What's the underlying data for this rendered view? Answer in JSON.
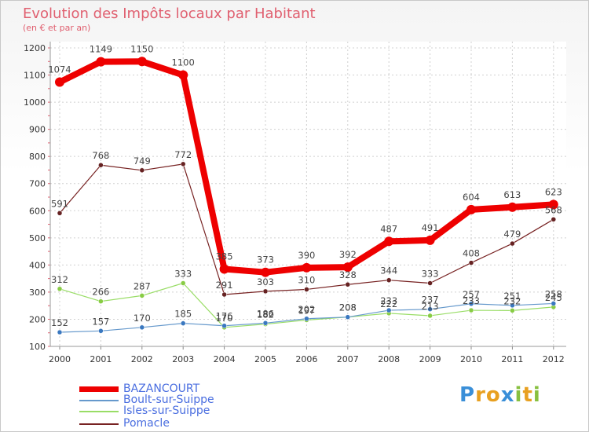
{
  "title": "Evolution des Impôts locaux par Habitant",
  "subtitle": "(en € et par an)",
  "logo": [
    "P",
    "r",
    "o",
    "x",
    "i",
    "t",
    "i"
  ],
  "chart_data": {
    "type": "line",
    "x": [
      "2000",
      "2001",
      "2002",
      "2003",
      "2004",
      "2005",
      "2006",
      "2007",
      "2008",
      "2009",
      "2010",
      "2011",
      "2012"
    ],
    "ylim": [
      100,
      1200
    ],
    "yticks": [
      100,
      200,
      300,
      400,
      500,
      600,
      700,
      800,
      900,
      1000,
      1100,
      1200
    ],
    "series": [
      {
        "name": "BAZANCOURT",
        "color": "#ee0000",
        "values": [
          1074,
          1149,
          1150,
          1100,
          385,
          373,
          390,
          392,
          487,
          491,
          604,
          613,
          623
        ],
        "labels": [
          "1074",
          "1149",
          "1150",
          "1100",
          "385",
          "373",
          "390",
          "392",
          "487",
          "491",
          "604",
          "613",
          "623"
        ]
      },
      {
        "name": "Boult-sur-Suippe",
        "color": "#6699cc",
        "values": [
          152,
          157,
          170,
          185,
          176,
          186,
          202,
          208,
          233,
          237,
          257,
          251,
          258
        ],
        "labels": [
          "152",
          "157",
          "170",
          "185",
          "176",
          "186",
          "202",
          "208",
          "233",
          "237",
          "257",
          "251",
          "258"
        ]
      },
      {
        "name": "Isles-sur-Suippe",
        "color": "#99dd66",
        "values": [
          312,
          266,
          287,
          333,
          170,
          182,
          197,
          208,
          222,
          213,
          233,
          232,
          245
        ],
        "labels": [
          "312",
          "266",
          "287",
          "333",
          "170",
          "182",
          "197",
          "208",
          "222",
          "213",
          "233",
          "232",
          "245"
        ]
      },
      {
        "name": "Pomacle",
        "color": "#772222",
        "values": [
          591,
          768,
          749,
          772,
          291,
          303,
          310,
          328,
          344,
          333,
          408,
          479,
          568
        ],
        "labels": [
          "591",
          "768",
          "749",
          "772",
          "291",
          "303",
          "310",
          "328",
          "344",
          "333",
          "408",
          "479",
          "568"
        ]
      }
    ]
  }
}
